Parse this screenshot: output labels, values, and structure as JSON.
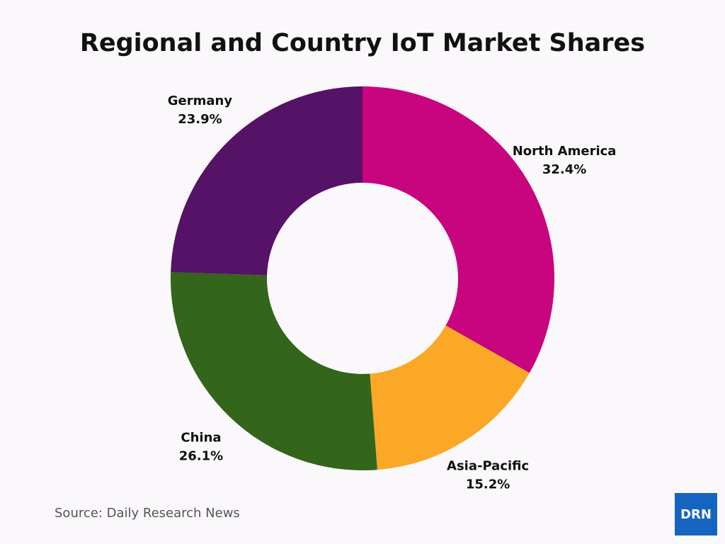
{
  "chart_data": {
    "type": "donut",
    "title": "Regional and Country IoT Market Shares",
    "categories": [
      "North America",
      "Asia-Pacific",
      "China",
      "Germany"
    ],
    "values": [
      32.4,
      15.2,
      26.1,
      23.9
    ],
    "value_labels": [
      "32.4%",
      "15.2%",
      "26.1%",
      "23.9%"
    ],
    "colors": [
      "#c8047f",
      "#fba826",
      "#33651a",
      "#561266"
    ],
    "source": "Source: Daily Research News",
    "logo": "DRN"
  }
}
